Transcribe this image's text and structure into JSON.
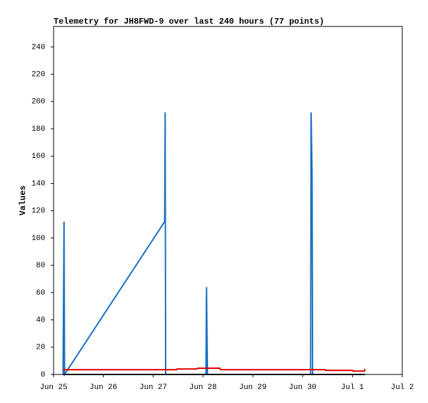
{
  "chart_data": {
    "type": "line",
    "title": "Telemetry for JH8FWD-9 over last 240 hours (77 points)",
    "y_label": "Values",
    "xlim": [
      25,
      32
    ],
    "xticks": [
      {
        "value": 25,
        "label": "Jun 25"
      },
      {
        "value": 26,
        "label": "Jun 26"
      },
      {
        "value": 27,
        "label": "Jun 27"
      },
      {
        "value": 28,
        "label": "Jun 28"
      },
      {
        "value": 29,
        "label": "Jun 29"
      },
      {
        "value": 30,
        "label": "Jun 30"
      },
      {
        "value": 31,
        "label": "Jul 1"
      },
      {
        "value": 32,
        "label": "Jul 2"
      }
    ],
    "ylim": [
      0,
      255
    ],
    "yticks": [
      0,
      20,
      40,
      60,
      80,
      100,
      120,
      140,
      160,
      180,
      200,
      220,
      240
    ],
    "series": [
      {
        "color": "#000000",
        "x": [
          25.19,
          31.25
        ],
        "values": [
          0,
          0
        ]
      },
      {
        "color": "#e00000",
        "x": [
          25.19,
          27.47,
          27.48,
          27.88,
          27.89,
          28.34,
          28.35,
          30.45,
          30.46,
          31.0,
          31.01,
          31.24,
          31.25
        ],
        "values": [
          3.5,
          3.5,
          4,
          4,
          4.6,
          4.6,
          3.5,
          3.5,
          3,
          3,
          2.5,
          2.5,
          4
        ]
      },
      {
        "color": "#1a6fc2",
        "x": [
          25.19,
          25.21,
          25.22,
          27.23,
          27.24,
          27.25,
          28.06,
          28.07,
          28.08,
          28.09,
          30.16,
          30.17,
          30.19,
          30.2,
          31.25
        ],
        "values": [
          0,
          112,
          0,
          112,
          192,
          0,
          0,
          64,
          32,
          0,
          0,
          192,
          144,
          0,
          0
        ]
      }
    ]
  }
}
